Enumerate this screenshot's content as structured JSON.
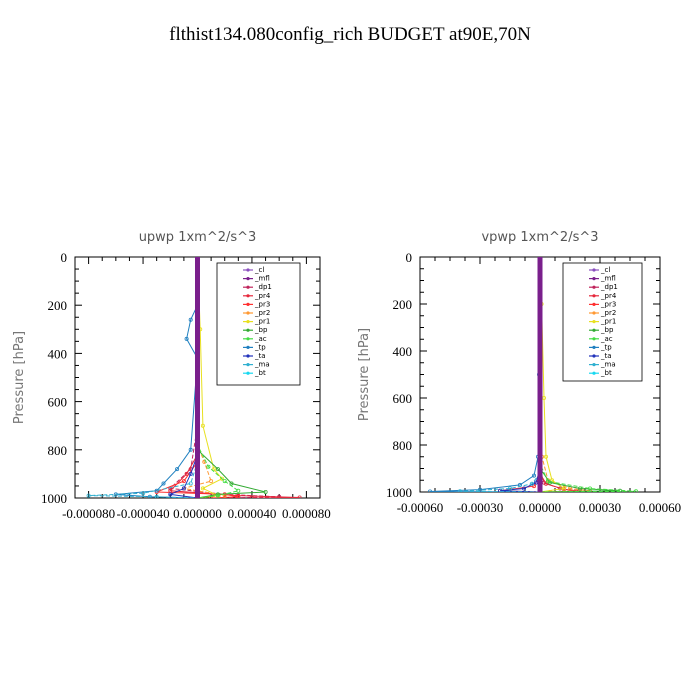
{
  "title": "flthist134.080config_rich  BUDGET at90E,70N",
  "legend_names": [
    "_cl",
    "_mfl",
    "_dp1",
    "_pr4",
    "_pr3",
    "_pr2",
    "_pr1",
    "_bp",
    "_ac",
    "_tp",
    "_ta",
    "_ma",
    "_bt"
  ],
  "series_colors": [
    "#8a4fbf",
    "#7a1f8c",
    "#c0245c",
    "#e6283c",
    "#ff3030",
    "#ff9933",
    "#e8e020",
    "#33aa33",
    "#44dd44",
    "#2080c0",
    "#2233bb",
    "#30b0d0",
    "#18d8f0"
  ],
  "chart_data": [
    {
      "type": "line",
      "title": "upwp   1xm^2/s^3",
      "ylabel": "Pressure  [hPa]",
      "xlabel": "",
      "xlim": [
        -9e-05,
        9e-05
      ],
      "ylim": [
        1000,
        0
      ],
      "x_ticks": [
        -8e-05,
        -4e-05,
        0,
        4e-05,
        8e-05
      ],
      "x_tick_labels": [
        "-0.000080",
        "-0.000040",
        "0.000000",
        "0.000040",
        "0.000080"
      ],
      "y_ticks": [
        0,
        200,
        400,
        600,
        800,
        1000
      ],
      "y_tick_labels": [
        "0",
        "200",
        "400",
        "600",
        "800",
        "1000"
      ],
      "series": [
        {
          "name": "_cl",
          "points": [
            [
              0,
              0
            ],
            [
              0,
              1000
            ]
          ]
        },
        {
          "name": "_mfl",
          "points": [
            [
              0,
              0
            ],
            [
              0,
              1000
            ]
          ]
        },
        {
          "name": "_dp1",
          "points": [
            [
              0,
              0
            ],
            [
              0,
              700
            ],
            [
              -5e-06,
              880
            ],
            [
              -2e-05,
              960
            ],
            [
              2e-05,
              985
            ],
            [
              6e-05,
              995
            ],
            [
              2e-05,
              1000
            ]
          ]
        },
        {
          "name": "_pr4",
          "points": [
            [
              0,
              0
            ],
            [
              0,
              820
            ],
            [
              -8e-06,
              900
            ],
            [
              -2e-05,
              970
            ],
            [
              3e-05,
              990
            ],
            [
              7.5e-05,
              998
            ],
            [
              4e-05,
              1000
            ]
          ]
        },
        {
          "name": "_pr3",
          "points": [
            [
              0,
              0
            ],
            [
              0,
              850
            ],
            [
              -1e-05,
              930
            ],
            [
              -3e-05,
              975
            ],
            [
              2e-05,
              985
            ],
            [
              3e-05,
              995
            ],
            [
              1e-05,
              1000
            ]
          ]
        },
        {
          "name": "_pr2",
          "points": [
            [
              0,
              0
            ],
            [
              0,
              780
            ],
            [
              5e-06,
              850
            ],
            [
              1e-05,
              930
            ],
            [
              -1e-05,
              960
            ],
            [
              2e-05,
              990
            ],
            [
              0,
              1000
            ]
          ]
        },
        {
          "name": "_pr1",
          "points": [
            [
              0,
              0
            ],
            [
              2e-06,
              300
            ],
            [
              4e-06,
              700
            ],
            [
              1.2e-05,
              880
            ],
            [
              1.8e-05,
              920
            ],
            [
              4e-06,
              960
            ],
            [
              1.5e-05,
              990
            ],
            [
              0,
              1000
            ]
          ]
        },
        {
          "name": "_bp",
          "points": [
            [
              0,
              0
            ],
            [
              0,
              800
            ],
            [
              1.5e-05,
              880
            ],
            [
              2.5e-05,
              940
            ],
            [
              5e-05,
              975
            ],
            [
              1.5e-05,
              985
            ],
            [
              0,
              1000
            ]
          ]
        },
        {
          "name": "_ac",
          "points": [
            [
              0,
              0
            ],
            [
              0,
              780
            ],
            [
              8e-06,
              870
            ],
            [
              2e-05,
              930
            ],
            [
              3e-05,
              970
            ],
            [
              1.5e-05,
              990
            ],
            [
              0,
              1000
            ]
          ]
        },
        {
          "name": "_tp",
          "points": [
            [
              0,
              0
            ],
            [
              0,
              200
            ],
            [
              -5e-06,
              260
            ],
            [
              -8e-06,
              340
            ],
            [
              0,
              420
            ],
            [
              -5e-06,
              800
            ],
            [
              -1.5e-05,
              880
            ],
            [
              -2.5e-05,
              940
            ],
            [
              -3e-05,
              970
            ],
            [
              -6e-05,
              985
            ],
            [
              -3.5e-05,
              995
            ],
            [
              0,
              1000
            ]
          ]
        },
        {
          "name": "_ta",
          "points": [
            [
              0,
              0
            ],
            [
              0,
              820
            ],
            [
              -5e-06,
              900
            ],
            [
              -1e-05,
              960
            ],
            [
              -2e-05,
              985
            ],
            [
              0,
              1000
            ]
          ]
        },
        {
          "name": "_ma",
          "points": [
            [
              0,
              0
            ],
            [
              0,
              850
            ],
            [
              -5e-06,
              940
            ],
            [
              -4e-05,
              980
            ],
            [
              -8e-05,
              990
            ],
            [
              -3e-05,
              995
            ],
            [
              0,
              1000
            ]
          ]
        },
        {
          "name": "_bt",
          "points": [
            [
              0,
              0
            ],
            [
              0,
              1000
            ]
          ]
        }
      ]
    },
    {
      "type": "line",
      "title": "vpwp   1xm^2/s^3",
      "ylabel": "Pressure  [hPa]",
      "xlabel": "",
      "xlim": [
        -0.0006,
        0.0006
      ],
      "ylim": [
        1000,
        0
      ],
      "x_ticks": [
        -0.0006,
        -0.0003,
        0,
        0.0003,
        0.0006
      ],
      "x_tick_labels": [
        "-0.00060",
        "-0.00030",
        "0.00000",
        "0.00030",
        "0.00060"
      ],
      "y_ticks": [
        0,
        200,
        400,
        600,
        800,
        1000
      ],
      "y_tick_labels": [
        "0",
        "200",
        "400",
        "600",
        "800",
        "1000"
      ],
      "series": [
        {
          "name": "_cl",
          "points": [
            [
              0,
              0
            ],
            [
              0,
              1000
            ]
          ]
        },
        {
          "name": "_mfl",
          "points": [
            [
              0,
              0
            ],
            [
              0,
              1000
            ]
          ]
        },
        {
          "name": "_dp1",
          "points": [
            [
              0,
              0
            ],
            [
              0,
              900
            ],
            [
              2e-05,
              960
            ],
            [
              0.0001,
              985
            ],
            [
              0.00018,
              995
            ],
            [
              5e-05,
              1000
            ]
          ]
        },
        {
          "name": "_pr4",
          "points": [
            [
              0,
              0
            ],
            [
              0,
              920
            ],
            [
              3e-05,
              965
            ],
            [
              0.00012,
              988
            ],
            [
              0.0002,
              996
            ],
            [
              0,
              1000
            ]
          ]
        },
        {
          "name": "_pr3",
          "points": [
            [
              0,
              0
            ],
            [
              0,
              930
            ],
            [
              -3e-05,
              975
            ],
            [
              -0.0002,
              995
            ],
            [
              0,
              1000
            ]
          ]
        },
        {
          "name": "_pr2",
          "points": [
            [
              0,
              0
            ],
            [
              5e-06,
              400
            ],
            [
              1e-05,
              850
            ],
            [
              4e-05,
              950
            ],
            [
              0.00015,
              985
            ],
            [
              0.00025,
              995
            ],
            [
              0,
              1000
            ]
          ]
        },
        {
          "name": "_pr1",
          "points": [
            [
              0,
              0
            ],
            [
              8e-06,
              200
            ],
            [
              2e-05,
              600
            ],
            [
              3e-05,
              850
            ],
            [
              6e-05,
              950
            ],
            [
              0.00012,
              985
            ],
            [
              0,
              1000
            ]
          ]
        },
        {
          "name": "_bp",
          "points": [
            [
              0,
              0
            ],
            [
              0,
              900
            ],
            [
              5e-05,
              960
            ],
            [
              0.0002,
              985
            ],
            [
              0.0004,
              995
            ],
            [
              0,
              1000
            ]
          ]
        },
        {
          "name": "_ac",
          "points": [
            [
              0,
              0
            ],
            [
              0,
              880
            ],
            [
              4e-05,
              955
            ],
            [
              0.00025,
              985
            ],
            [
              0.00048,
              997
            ],
            [
              0,
              1000
            ]
          ]
        },
        {
          "name": "_tp",
          "points": [
            [
              0,
              0
            ],
            [
              -5e-06,
              500
            ],
            [
              -1e-05,
              850
            ],
            [
              -3e-05,
              930
            ],
            [
              -0.0001,
              970
            ],
            [
              -0.0003,
              990
            ],
            [
              -0.00055,
              998
            ],
            [
              0,
              1000
            ]
          ]
        },
        {
          "name": "_ta",
          "points": [
            [
              0,
              0
            ],
            [
              0,
              900
            ],
            [
              -2e-05,
              960
            ],
            [
              -8e-05,
              985
            ],
            [
              -0.0002,
              995
            ],
            [
              0,
              1000
            ]
          ]
        },
        {
          "name": "_ma",
          "points": [
            [
              0,
              0
            ],
            [
              0,
              920
            ],
            [
              -4e-05,
              965
            ],
            [
              -0.00015,
              985
            ],
            [
              -0.0004,
              997
            ],
            [
              0,
              1000
            ]
          ]
        },
        {
          "name": "_bt",
          "points": [
            [
              0,
              0
            ],
            [
              0,
              1000
            ]
          ]
        }
      ]
    }
  ]
}
